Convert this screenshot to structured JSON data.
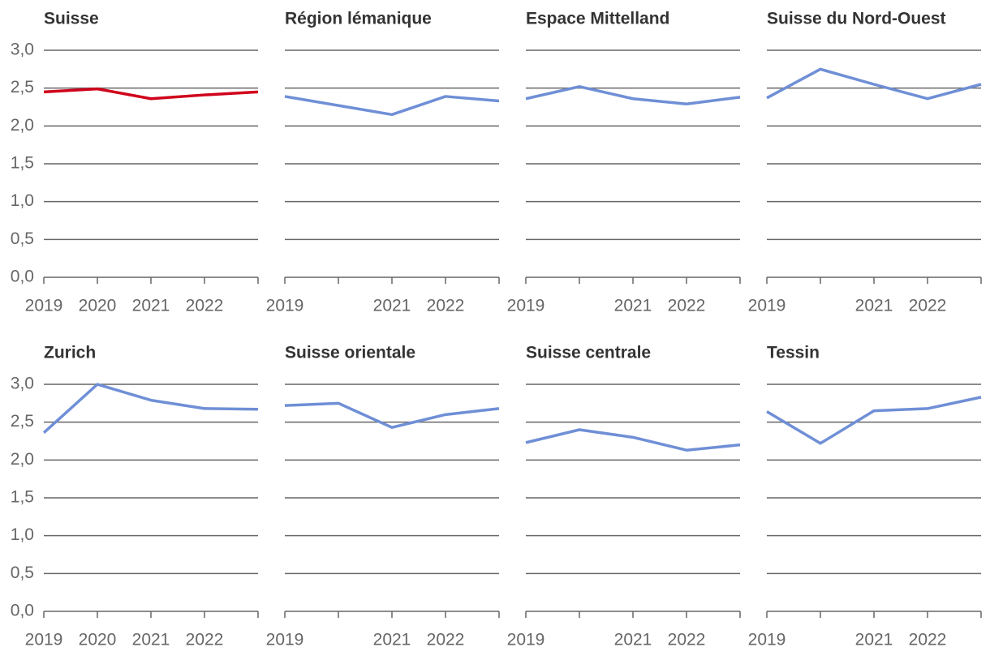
{
  "chart_data": [
    {
      "type": "line",
      "title": "Suisse",
      "categories": [
        "2019",
        "2020",
        "2021",
        "2022",
        null
      ],
      "values": [
        2.45,
        2.49,
        2.36,
        2.41,
        2.45
      ],
      "color": "#d0021b",
      "ylim": [
        0,
        3
      ],
      "yticks": [
        {
          "value": 0,
          "label": "0,0"
        },
        {
          "value": 0.5,
          "label": "0,5"
        },
        {
          "value": 1,
          "label": "1,0"
        },
        {
          "value": 1.5,
          "label": "1,5"
        },
        {
          "value": 2,
          "label": "2,0"
        },
        {
          "value": 2.5,
          "label": "2,5"
        },
        {
          "value": 3,
          "label": "3,0"
        }
      ],
      "grid": true
    },
    {
      "type": "line",
      "title": "Région lémanique",
      "categories": [
        "2019",
        null,
        "2021",
        "2022",
        null
      ],
      "values": [
        2.39,
        2.27,
        2.15,
        2.39,
        2.33
      ],
      "color": "#6f8fd6",
      "ylim": [
        0,
        3
      ],
      "yticks": [
        0,
        0.5,
        1,
        1.5,
        2,
        2.5,
        3
      ],
      "grid": true
    },
    {
      "type": "line",
      "title": "Espace Mittelland",
      "categories": [
        "2019",
        null,
        "2021",
        "2022",
        null
      ],
      "values": [
        2.36,
        2.52,
        2.36,
        2.29,
        2.38
      ],
      "color": "#6f8fd6",
      "ylim": [
        0,
        3
      ],
      "yticks": [
        0,
        0.5,
        1,
        1.5,
        2,
        2.5,
        3
      ],
      "grid": true
    },
    {
      "type": "line",
      "title": "Suisse du Nord-Ouest",
      "categories": [
        "2019",
        null,
        "2021",
        "2022",
        null
      ],
      "values": [
        2.37,
        2.75,
        2.55,
        2.36,
        2.55
      ],
      "color": "#6f8fd6",
      "ylim": [
        0,
        3
      ],
      "yticks": [
        0,
        0.5,
        1,
        1.5,
        2,
        2.5,
        3
      ],
      "grid": true
    },
    {
      "type": "line",
      "title": "Zurich",
      "categories": [
        "2019",
        "2020",
        "2021",
        "2022",
        null
      ],
      "values": [
        2.36,
        3.0,
        2.79,
        2.68,
        2.67
      ],
      "color": "#6f8fd6",
      "ylim": [
        0,
        3
      ],
      "yticks": [
        {
          "value": 0,
          "label": "0,0"
        },
        {
          "value": 0.5,
          "label": "0,5"
        },
        {
          "value": 1,
          "label": "1,0"
        },
        {
          "value": 1.5,
          "label": "1,5"
        },
        {
          "value": 2,
          "label": "2,0"
        },
        {
          "value": 2.5,
          "label": "2,5"
        },
        {
          "value": 3,
          "label": "3,0"
        }
      ],
      "grid": true
    },
    {
      "type": "line",
      "title": "Suisse orientale",
      "categories": [
        "2019",
        null,
        "2021",
        "2022",
        null
      ],
      "values": [
        2.72,
        2.75,
        2.43,
        2.6,
        2.68
      ],
      "color": "#6f8fd6",
      "ylim": [
        0,
        3
      ],
      "yticks": [
        0,
        0.5,
        1,
        1.5,
        2,
        2.5,
        3
      ],
      "grid": true
    },
    {
      "type": "line",
      "title": "Suisse centrale",
      "categories": [
        "2019",
        null,
        "2021",
        "2022",
        null
      ],
      "values": [
        2.23,
        2.4,
        2.3,
        2.13,
        2.2
      ],
      "color": "#6f8fd6",
      "ylim": [
        0,
        3
      ],
      "yticks": [
        0,
        0.5,
        1,
        1.5,
        2,
        2.5,
        3
      ],
      "grid": true
    },
    {
      "type": "line",
      "title": "Tessin",
      "categories": [
        "2019",
        null,
        "2021",
        "2022",
        null
      ],
      "values": [
        2.64,
        2.22,
        2.65,
        2.68,
        2.83
      ],
      "color": "#6f8fd6",
      "ylim": [
        0,
        3
      ],
      "yticks": [
        0,
        0.5,
        1,
        1.5,
        2,
        2.5,
        3
      ],
      "grid": true
    }
  ]
}
